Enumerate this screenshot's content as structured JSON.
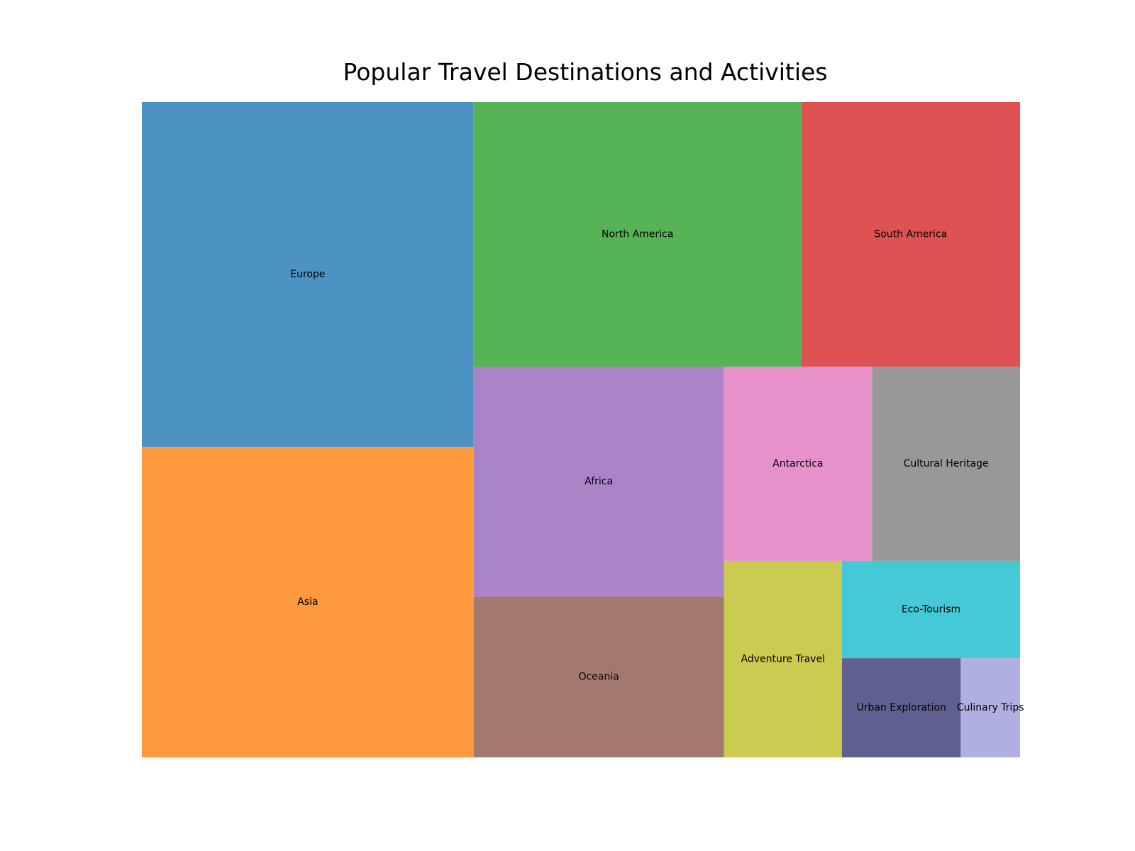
{
  "chart_data": {
    "type": "treemap",
    "title": "Popular Travel Destinations and Activities",
    "items": [
      {
        "label": "Europe",
        "value": 35,
        "color": "#4c92c3"
      },
      {
        "label": "Asia",
        "value": 31.5,
        "color": "#ff993e"
      },
      {
        "label": "North America",
        "value": 26.5,
        "color": "#56b356"
      },
      {
        "label": "South America",
        "value": 17.7,
        "color": "#de5253"
      },
      {
        "label": "Africa",
        "value": 17.6,
        "color": "#a985c8"
      },
      {
        "label": "Oceania",
        "value": 12.3,
        "color": "#a3796f"
      },
      {
        "label": "Antarctica",
        "value": 8.8,
        "color": "#e791cb"
      },
      {
        "label": "Cultural Heritage",
        "value": 8.8,
        "color": "#989898"
      },
      {
        "label": "Adventure Travel",
        "value": 7.1,
        "color": "#cbcb51"
      },
      {
        "label": "Eco-Tourism",
        "value": 5.3,
        "color": "#45c9d6"
      },
      {
        "label": "Urban Exploration",
        "value": 3.6,
        "color": "#5f608f"
      },
      {
        "label": "Culinary Trips",
        "value": 1.8,
        "color": "#b0afe1"
      }
    ]
  }
}
